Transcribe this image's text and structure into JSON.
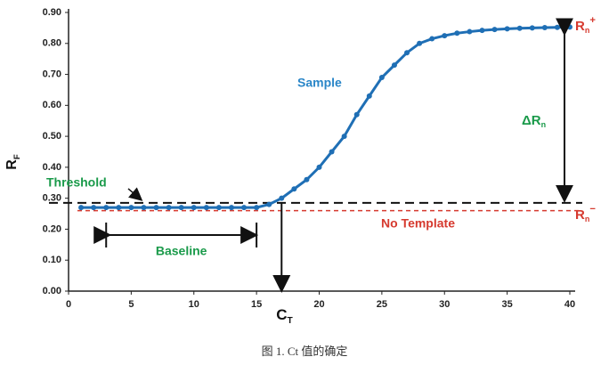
{
  "chart_data": {
    "type": "line",
    "y_label": {
      "text": "R",
      "sub": "F"
    },
    "caption": "图 1. Ct 值的确定",
    "x": [
      1,
      2,
      3,
      4,
      5,
      6,
      7,
      8,
      9,
      10,
      11,
      12,
      13,
      14,
      15,
      16,
      17,
      18,
      19,
      20,
      21,
      22,
      23,
      24,
      25,
      26,
      27,
      28,
      29,
      30,
      31,
      32,
      33,
      34,
      35,
      36,
      37,
      38,
      39,
      40
    ],
    "series": [
      {
        "name": "Sample",
        "color": "#1f6fb5",
        "values": [
          0.27,
          0.27,
          0.27,
          0.27,
          0.27,
          0.27,
          0.27,
          0.27,
          0.27,
          0.27,
          0.27,
          0.27,
          0.27,
          0.27,
          0.27,
          0.28,
          0.3,
          0.33,
          0.36,
          0.4,
          0.45,
          0.5,
          0.57,
          0.63,
          0.69,
          0.73,
          0.77,
          0.8,
          0.815,
          0.825,
          0.833,
          0.838,
          0.842,
          0.845,
          0.847,
          0.849,
          0.85,
          0.851,
          0.852,
          0.853
        ]
      }
    ],
    "threshold": {
      "label": "Threshold",
      "value": 0.285,
      "color": "#1a9a4a"
    },
    "no_template": {
      "label": "No Template",
      "value": 0.26,
      "color": "#d63a2f"
    },
    "baseline": {
      "label": "Baseline",
      "range": [
        3,
        15
      ],
      "color": "#1a9a4a"
    },
    "ct": {
      "value": 17,
      "label": {
        "text": "C",
        "sub": "T"
      }
    },
    "delta_rn": {
      "text": "ΔR",
      "sub": "n",
      "color": "#1a9a4a"
    },
    "rn_plus": {
      "text": "R",
      "sub": "n",
      "sup": "+",
      "color": "#d63a2f"
    },
    "rn_minus": {
      "text": "R",
      "sub": "n",
      "sup": "−",
      "color": "#d63a2f"
    },
    "xlim": [
      0,
      40
    ],
    "ylim": [
      0,
      0.9
    ],
    "xticks": [
      0,
      5,
      10,
      15,
      20,
      25,
      30,
      35,
      40
    ],
    "yticks": [
      {
        "value": 0,
        "label": "0.00"
      },
      {
        "value": 0.1,
        "label": "0.10"
      },
      {
        "value": 0.2,
        "label": "0.20"
      },
      {
        "value": 0.3,
        "label": "0.30"
      },
      {
        "value": 0.4,
        "label": "0.40"
      },
      {
        "value": 0.5,
        "label": "0.50"
      },
      {
        "value": 0.6,
        "label": "0.60"
      },
      {
        "value": 0.7,
        "label": "0.70"
      },
      {
        "value": 0.8,
        "label": "0.80"
      },
      {
        "value": 0.9,
        "label": "0.90"
      }
    ]
  }
}
